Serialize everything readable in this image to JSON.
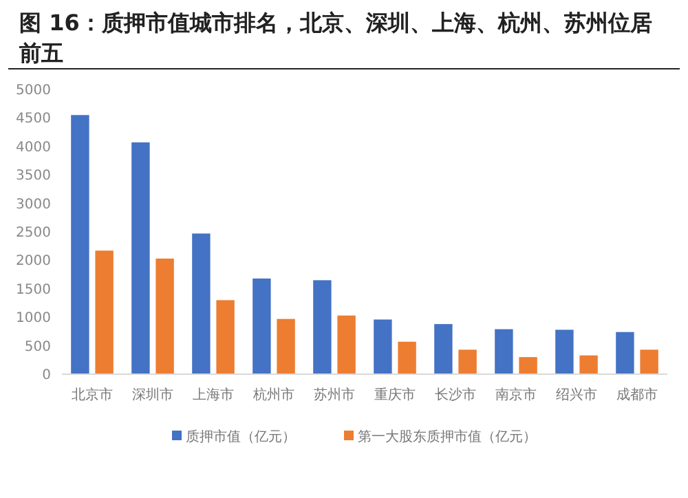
{
  "chart_data": {
    "type": "bar",
    "title": "图 16：质押市值城市排名，北京、深圳、上海、杭州、苏州位居前五",
    "categories": [
      "北京市",
      "深圳市",
      "上海市",
      "杭州市",
      "苏州市",
      "重庆市",
      "长沙市",
      "南京市",
      "绍兴市",
      "成都市"
    ],
    "series": [
      {
        "name": "质押市值（亿元）",
        "color": "#4472c4",
        "values": [
          4550,
          4070,
          2470,
          1680,
          1650,
          960,
          880,
          790,
          780,
          740
        ]
      },
      {
        "name": "第一大股东质押市值（亿元）",
        "color": "#ed7d31",
        "values": [
          2170,
          2030,
          1300,
          970,
          1030,
          570,
          430,
          300,
          330,
          430
        ]
      }
    ],
    "ylim": [
      0,
      5000
    ],
    "yticks": [
      0,
      500,
      1000,
      1500,
      2000,
      2500,
      3000,
      3500,
      4000,
      4500,
      5000
    ],
    "grid": false,
    "legend": "bottom"
  }
}
